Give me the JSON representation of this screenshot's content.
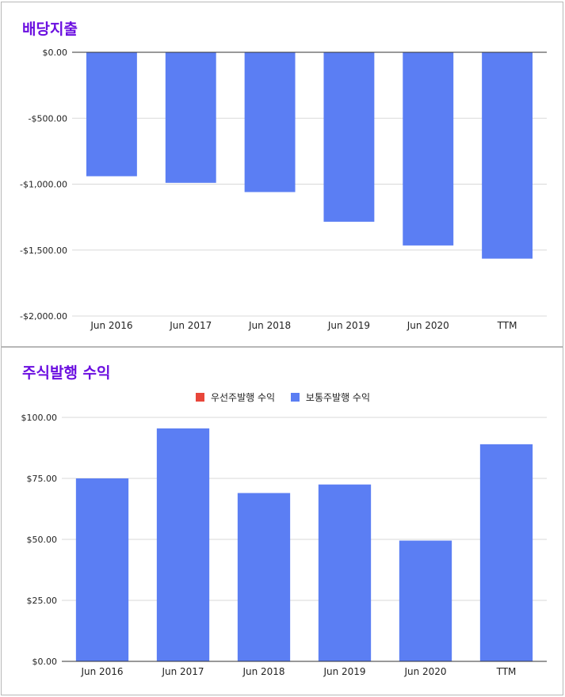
{
  "colors": {
    "bar": "#5b7ef3",
    "title": "#6b0fe0",
    "grid": "#d9d9d9",
    "axis": "#333333",
    "preferred": "#e8463a"
  },
  "chart_data": [
    {
      "type": "bar",
      "title": "배당지출",
      "categories": [
        "Jun 2016",
        "Jun 2017",
        "Jun 2018",
        "Jun 2019",
        "Jun 2020",
        "TTM"
      ],
      "values": [
        -940,
        -990,
        -1060,
        -1285,
        -1465,
        -1565
      ],
      "ylim": [
        -2000,
        0
      ],
      "yticks": [
        0,
        -500,
        -1000,
        -1500,
        -2000
      ],
      "ytick_labels": [
        "$0.00",
        "-$500.00",
        "-$1,000.00",
        "-$1,500.00",
        "-$2,000.00"
      ],
      "grid": true
    },
    {
      "type": "bar",
      "title": "주식발행 수익",
      "categories": [
        "Jun 2016",
        "Jun 2017",
        "Jun 2018",
        "Jun 2019",
        "Jun 2020",
        "TTM"
      ],
      "series": [
        {
          "name": "우선주발행 수익",
          "values": [
            0,
            0,
            0,
            0,
            0,
            0
          ],
          "color": "#e8463a"
        },
        {
          "name": "보통주발행 수익",
          "values": [
            75,
            95.5,
            69,
            72.5,
            49.5,
            89
          ],
          "color": "#5b7ef3"
        }
      ],
      "ylim": [
        0,
        100
      ],
      "yticks": [
        0,
        25,
        50,
        75,
        100
      ],
      "ytick_labels": [
        "$0.00",
        "$25.00",
        "$50.00",
        "$75.00",
        "$100.00"
      ],
      "legend_position": "top",
      "grid": true
    }
  ]
}
